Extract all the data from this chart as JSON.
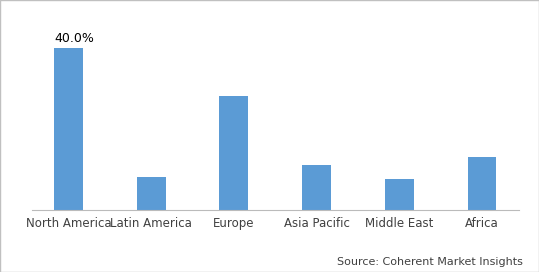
{
  "categories": [
    "North America",
    "Latin America",
    "Europe",
    "Asia Pacific",
    "Middle East",
    "Africa"
  ],
  "values": [
    40.0,
    8.0,
    28.0,
    11.0,
    7.5,
    13.0
  ],
  "bar_color": "#5b9bd5",
  "label_text": "40.0%",
  "label_bar_index": 0,
  "ylim": [
    0,
    46
  ],
  "background_color": "#ffffff",
  "source_text": "Source: Coherent Market Insights",
  "source_fontsize": 8,
  "label_fontsize": 9,
  "tick_fontsize": 8.5,
  "bar_width": 0.35,
  "border_color": "#c0c0c0",
  "border_linewidth": 1.0
}
